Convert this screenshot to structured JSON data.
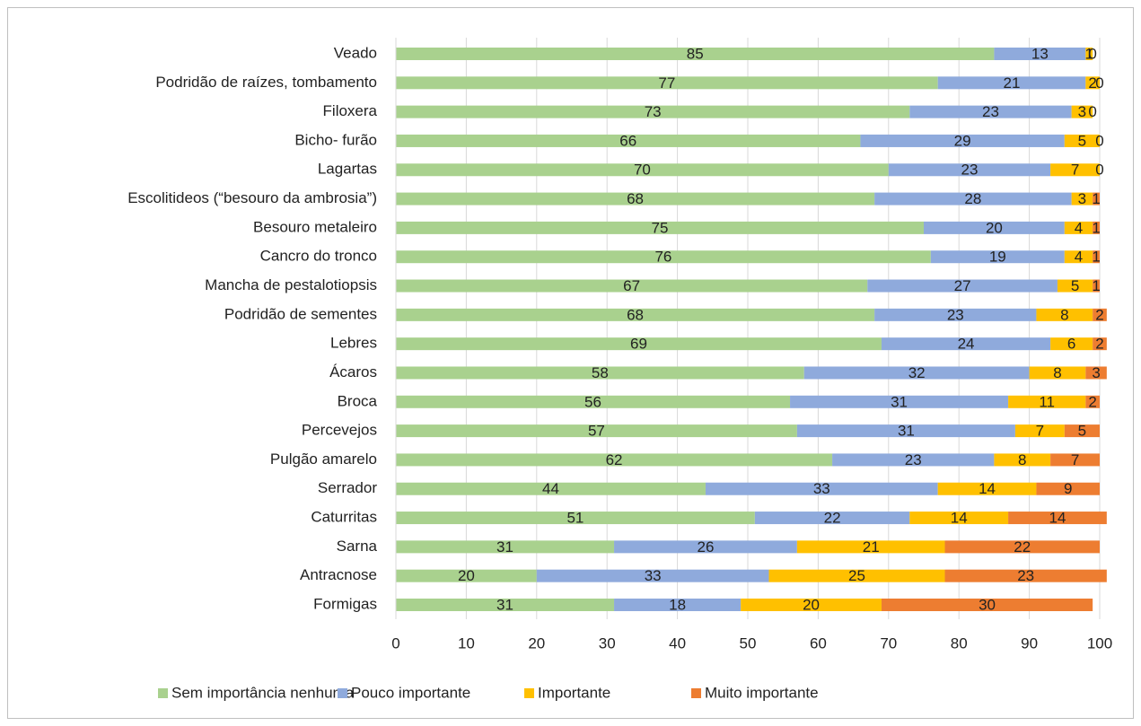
{
  "chart_data": {
    "type": "bar",
    "orientation": "horizontal",
    "stacked": true,
    "grid": true,
    "legend": "bottom",
    "categories": [
      "Veado",
      "Podridão de raízes, tombamento",
      "Filoxera",
      "Bicho- furão",
      "Lagartas",
      "Escolitideos (“besouro  da ambrosia”)",
      "Besouro metaleiro",
      "Cancro do tronco",
      "Mancha de pestalotiopsis",
      "Podridão  de sementes",
      "Lebres",
      "Ácaros",
      "Broca",
      "Percevejos",
      "Pulgão amarelo",
      "Serrador",
      "Caturritas",
      "Sarna",
      "Antracnose",
      "Formigas"
    ],
    "series": [
      {
        "name": "Sem importância nenhuma",
        "color": "#a9d18e",
        "values": [
          85,
          77,
          73,
          66,
          70,
          68,
          75,
          76,
          67,
          68,
          69,
          58,
          56,
          57,
          62,
          44,
          51,
          31,
          20,
          31
        ]
      },
      {
        "name": "Pouco importante",
        "color": "#8faadc",
        "values": [
          13,
          21,
          23,
          29,
          23,
          28,
          20,
          19,
          27,
          23,
          24,
          32,
          31,
          31,
          23,
          33,
          22,
          26,
          33,
          18
        ]
      },
      {
        "name": "Importante",
        "color": "#ffc000",
        "values": [
          1,
          2,
          3,
          5,
          7,
          3,
          4,
          4,
          5,
          8,
          6,
          8,
          11,
          7,
          8,
          14,
          14,
          21,
          25,
          20
        ]
      },
      {
        "name": "Muito importante",
        "color": "#ed7d31",
        "values": [
          0,
          0,
          0,
          0,
          0,
          1,
          1,
          1,
          1,
          2,
          2,
          3,
          2,
          5,
          7,
          9,
          14,
          22,
          23,
          30
        ]
      }
    ],
    "xlim": [
      0,
      100
    ],
    "xticks": [
      0,
      10,
      20,
      30,
      40,
      50,
      60,
      70,
      80,
      90,
      100
    ]
  }
}
